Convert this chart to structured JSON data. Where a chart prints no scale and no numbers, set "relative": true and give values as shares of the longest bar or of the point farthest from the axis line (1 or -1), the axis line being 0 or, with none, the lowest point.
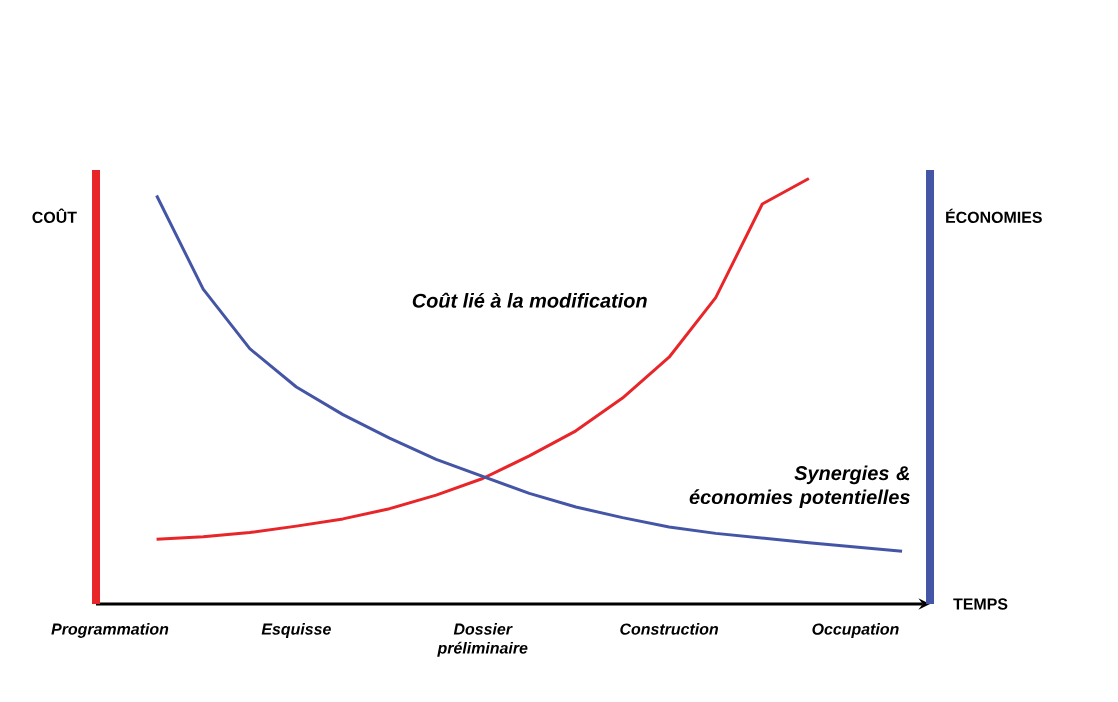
{
  "chart_data": {
    "type": "line",
    "relative": true,
    "xlabel": "TEMPS",
    "ylabel": "COÛT",
    "y2label": "ÉCONOMIES",
    "categories": [
      "Programmation",
      null,
      null,
      null,
      "Esquisse",
      null,
      null,
      null,
      "Dossier préliminaire",
      null,
      null,
      null,
      "Construction",
      null,
      null,
      null,
      "Occupation",
      null
    ],
    "series": [
      {
        "color": "#e8262a",
        "values": [
          null,
          0.152,
          0.158,
          0.168,
          0.183,
          0.2,
          0.224,
          0.256,
          0.295,
          0.348,
          0.407,
          0.484,
          0.58,
          0.72,
          0.94,
          1.0,
          null,
          null
        ]
      },
      {
        "color": "#4455a6",
        "values": [
          null,
          0.96,
          0.74,
          0.6,
          0.51,
          0.445,
          0.39,
          0.34,
          0.3,
          0.26,
          0.228,
          0.203,
          0.181,
          0.166,
          0.155,
          0.144,
          0.134,
          0.124
        ]
      }
    ],
    "annotations": [
      "Coût lié à la modification",
      "Synergies & économies potentielles"
    ]
  }
}
